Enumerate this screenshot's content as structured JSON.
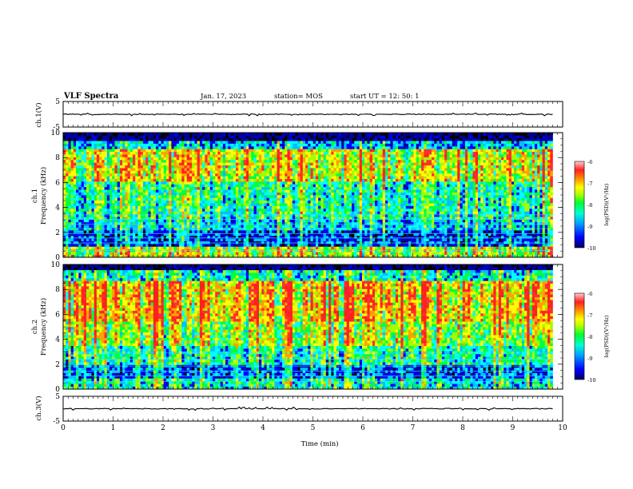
{
  "header": {
    "title": "VLF Spectra",
    "date": "Jan. 17, 2023",
    "station": "station= MOS",
    "start": "start  UT =   12: 50: 1"
  },
  "chart_data": [
    {
      "type": "line",
      "panel": "ch1-waveform",
      "ylabel": "ch.1(V)",
      "ylim": [
        -5,
        5
      ],
      "y_ticks": [
        "5",
        "-5"
      ],
      "series": [
        {
          "values": [
            0
          ]
        }
      ]
    },
    {
      "type": "heatmap",
      "panel": "ch1-spectrogram",
      "ylabel": [
        "ch.1",
        "Frequency (kHz)"
      ],
      "ylim": [
        0,
        10
      ],
      "y_ticks": [
        "0",
        "2",
        "4",
        "6",
        "8",
        "10"
      ],
      "colorbar": {
        "label": "log(PSD)(V²/Hz)",
        "range": [
          -10,
          -6
        ],
        "ticks": [
          "-6",
          "-7",
          "-8",
          "-9",
          "-10"
        ]
      }
    },
    {
      "type": "heatmap",
      "panel": "ch2-spectrogram",
      "ylabel": [
        "ch.2",
        "Frequency (kHz)"
      ],
      "ylim": [
        0,
        10
      ],
      "y_ticks": [
        "0",
        "2",
        "4",
        "6",
        "8",
        "10"
      ],
      "colorbar": {
        "label": "log(PSD)(V²/Hz)",
        "range": [
          -10,
          -6
        ],
        "ticks": [
          "-6",
          "-7",
          "-8",
          "-9",
          "-10"
        ]
      }
    },
    {
      "type": "line",
      "panel": "ch3-waveform",
      "ylabel": "ch.3(V)",
      "ylim": [
        -5,
        5
      ],
      "y_ticks": [
        "5",
        "-5"
      ],
      "series": [
        {
          "values": [
            0
          ]
        }
      ]
    }
  ],
  "time_axis": {
    "xlabel": "Time  (min)",
    "xlim": [
      0,
      10
    ],
    "ticks": [
      "0",
      "1",
      "2",
      "3",
      "4",
      "5",
      "6",
      "7",
      "8",
      "9",
      "10"
    ],
    "data_end_min": 9.8
  },
  "colors": {
    "scale": [
      "#000000",
      "#0000a0",
      "#0000ff",
      "#00c0ff",
      "#00ffff",
      "#00ff40",
      "#a0ff00",
      "#ffff00",
      "#ffa000",
      "#ff3030",
      "#ff2020",
      "#ff8080"
    ]
  }
}
